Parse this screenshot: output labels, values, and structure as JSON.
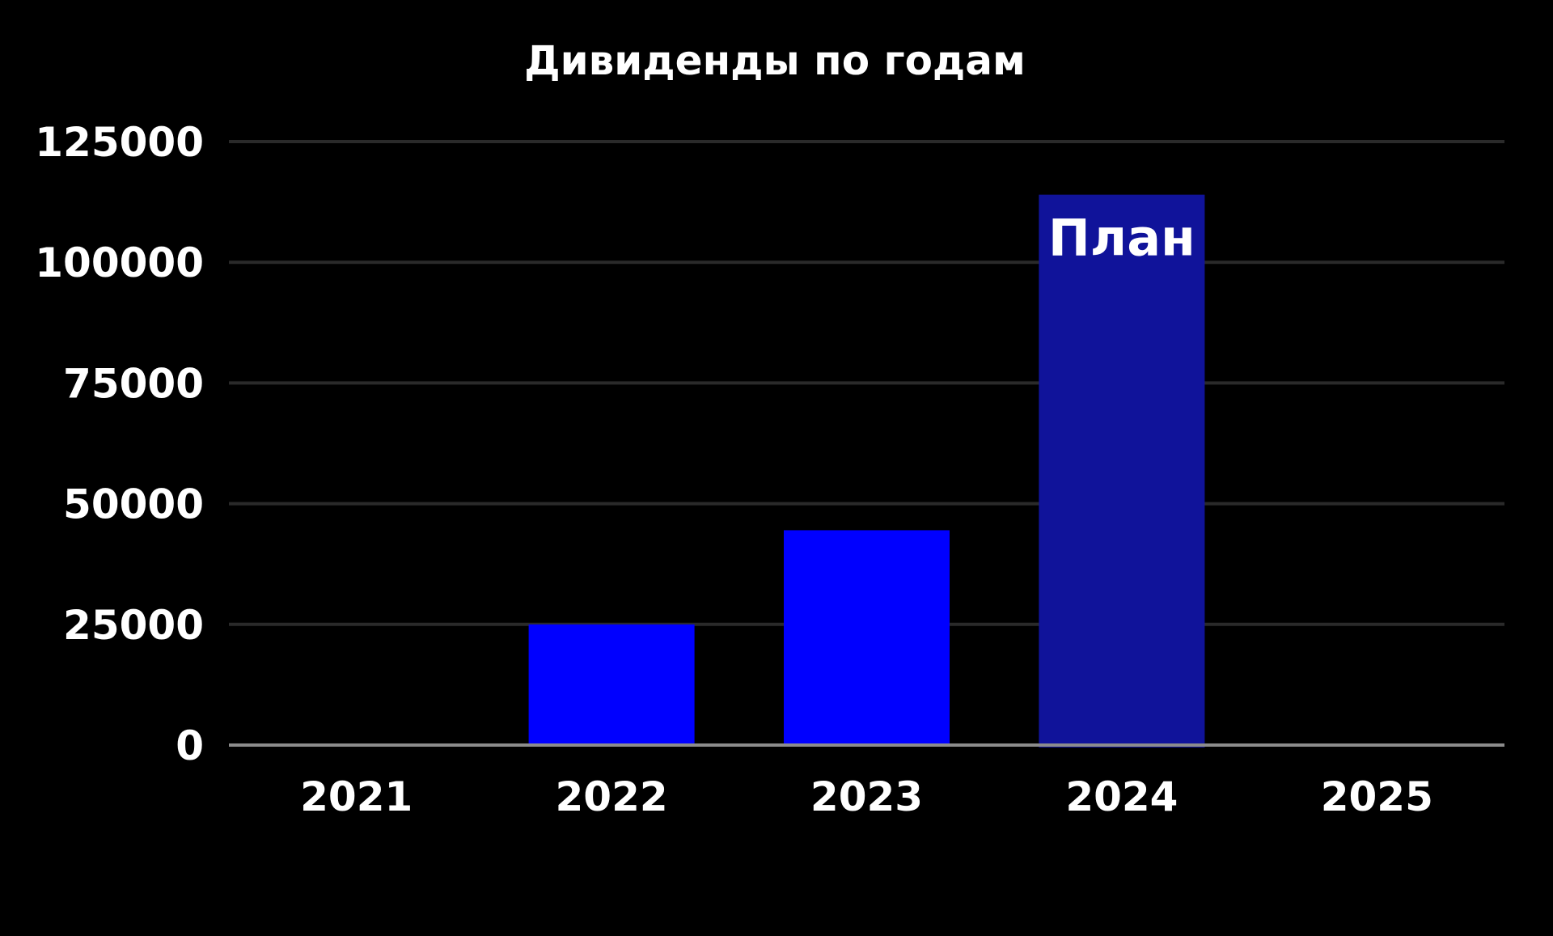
{
  "chart_data": {
    "type": "bar",
    "title": "Дивиденды по годам",
    "xlabel": "",
    "ylabel": "",
    "categories": [
      "2021",
      "2022",
      "2023",
      "2024",
      "2025"
    ],
    "values": [
      0,
      25000,
      44500,
      114000,
      0
    ],
    "bar_colors": [
      "#0000ff",
      "#0000ff",
      "#0000ff",
      "#10139a",
      "#0000ff"
    ],
    "yticks": [
      "0",
      "25000",
      "50000",
      "75000",
      "100000",
      "125000"
    ],
    "ylim": [
      0,
      125000
    ],
    "grid": true,
    "legend": "none",
    "annotations": [
      {
        "category": "2024",
        "text": "План"
      }
    ],
    "colors": {
      "background": "#000000",
      "text": "#ffffff",
      "grid": "#2a2a2a",
      "axis": "#8c8c8c"
    }
  }
}
